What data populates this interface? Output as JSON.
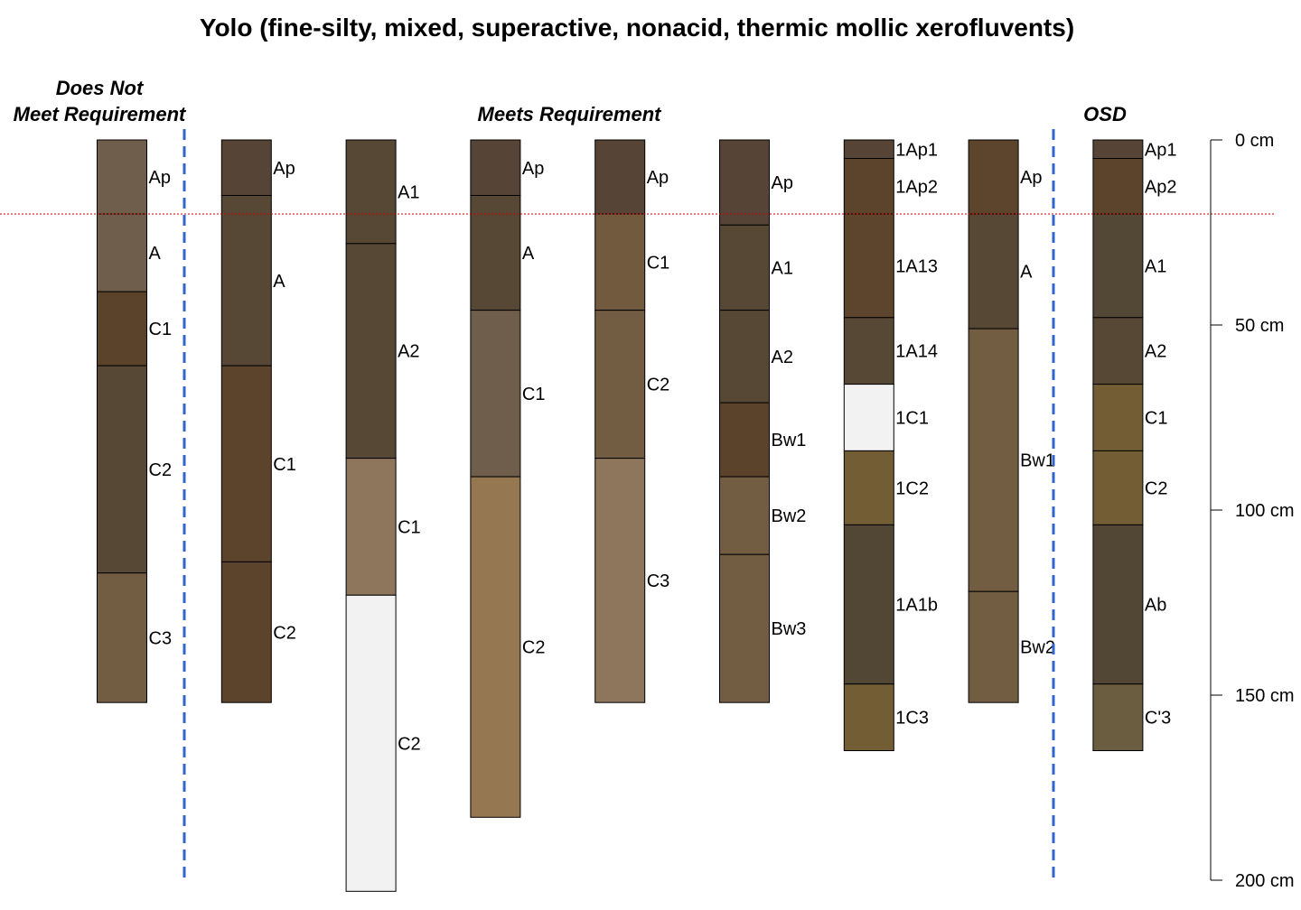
{
  "title": "Yolo (fine-silty, mixed, superactive, nonacid, thermic mollic xerofluvents)",
  "groups": [
    {
      "lines": [
        "Does Not",
        "Meet Requirement"
      ]
    },
    {
      "lines": [
        "Meets Requirement"
      ]
    },
    {
      "lines": [
        "OSD"
      ]
    }
  ],
  "depth_axis": {
    "unit": "cm",
    "max": 200,
    "ticks": [
      {
        "value": 0,
        "label": "0 cm"
      },
      {
        "value": 50,
        "label": "50 cm"
      },
      {
        "value": 100,
        "label": "100 cm"
      },
      {
        "value": 150,
        "label": "150 cm"
      },
      {
        "value": 200,
        "label": "200 cm"
      }
    ]
  },
  "reference_depth_cm": 20,
  "reference_line_color": "#cc0000",
  "separator_color": "#3366cc",
  "profiles": [
    {
      "horizons": [
        {
          "name": "Ap",
          "top": 0,
          "bottom": 20,
          "color": "#6f5e4b"
        },
        {
          "name": "A",
          "top": 20,
          "bottom": 41,
          "color": "#6f5e4b"
        },
        {
          "name": "C1",
          "top": 41,
          "bottom": 61,
          "color": "#5b432b"
        },
        {
          "name": "C2",
          "top": 61,
          "bottom": 117,
          "color": "#574735"
        },
        {
          "name": "C3",
          "top": 117,
          "bottom": 152,
          "color": "#725c42"
        }
      ]
    },
    {
      "horizons": [
        {
          "name": "Ap",
          "top": 0,
          "bottom": 15,
          "color": "#564536"
        },
        {
          "name": "A",
          "top": 15,
          "bottom": 61,
          "color": "#574735"
        },
        {
          "name": "C1",
          "top": 61,
          "bottom": 114,
          "color": "#5c432b"
        },
        {
          "name": "C2",
          "top": 114,
          "bottom": 152,
          "color": "#5b432c"
        }
      ]
    },
    {
      "horizons": [
        {
          "name": "A1",
          "top": 0,
          "bottom": 28,
          "color": "#574735"
        },
        {
          "name": "A2",
          "top": 28,
          "bottom": 86,
          "color": "#574735"
        },
        {
          "name": "C1",
          "top": 86,
          "bottom": 123,
          "color": "#8d765c"
        },
        {
          "name": "C2",
          "top": 123,
          "bottom": 203,
          "color": "#f2f2f2"
        }
      ]
    },
    {
      "horizons": [
        {
          "name": "Ap",
          "top": 0,
          "bottom": 15,
          "color": "#564536"
        },
        {
          "name": "A",
          "top": 15,
          "bottom": 46,
          "color": "#574735"
        },
        {
          "name": "C1",
          "top": 46,
          "bottom": 91,
          "color": "#6f5e4b"
        },
        {
          "name": "C2",
          "top": 91,
          "bottom": 183,
          "color": "#957852"
        }
      ]
    },
    {
      "horizons": [
        {
          "name": "Ap",
          "top": 0,
          "bottom": 20,
          "color": "#564536"
        },
        {
          "name": "C1",
          "top": 20,
          "bottom": 46,
          "color": "#725a3f"
        },
        {
          "name": "C2",
          "top": 46,
          "bottom": 86,
          "color": "#725c42"
        },
        {
          "name": "C3",
          "top": 86,
          "bottom": 152,
          "color": "#8d765c"
        }
      ]
    },
    {
      "horizons": [
        {
          "name": "Ap",
          "top": 0,
          "bottom": 23,
          "color": "#564536"
        },
        {
          "name": "A1",
          "top": 23,
          "bottom": 46,
          "color": "#574735"
        },
        {
          "name": "A2",
          "top": 46,
          "bottom": 71,
          "color": "#574735"
        },
        {
          "name": "Bw1",
          "top": 71,
          "bottom": 91,
          "color": "#5b432b"
        },
        {
          "name": "Bw2",
          "top": 91,
          "bottom": 112,
          "color": "#725c42"
        },
        {
          "name": "Bw3",
          "top": 112,
          "bottom": 152,
          "color": "#725c42"
        }
      ]
    },
    {
      "horizons": [
        {
          "name": "1Ap1",
          "top": 0,
          "bottom": 5,
          "color": "#564536"
        },
        {
          "name": "1Ap2",
          "top": 5,
          "bottom": 20,
          "color": "#5c432b"
        },
        {
          "name": "1A13",
          "top": 20,
          "bottom": 48,
          "color": "#5c452c"
        },
        {
          "name": "1A14",
          "top": 48,
          "bottom": 66,
          "color": "#574735"
        },
        {
          "name": "1C1",
          "top": 66,
          "bottom": 84,
          "color": "#f2f2f2"
        },
        {
          "name": "1C2",
          "top": 84,
          "bottom": 104,
          "color": "#735d35"
        },
        {
          "name": "1A1b",
          "top": 104,
          "bottom": 147,
          "color": "#524735"
        },
        {
          "name": "1C3",
          "top": 147,
          "bottom": 165,
          "color": "#735d35"
        }
      ]
    },
    {
      "horizons": [
        {
          "name": "Ap",
          "top": 0,
          "bottom": 20,
          "color": "#5c452c"
        },
        {
          "name": "A",
          "top": 20,
          "bottom": 51,
          "color": "#574735"
        },
        {
          "name": "Bw1",
          "top": 51,
          "bottom": 122,
          "color": "#725c42"
        },
        {
          "name": "Bw2",
          "top": 122,
          "bottom": 152,
          "color": "#725c42"
        }
      ]
    },
    {
      "horizons": [
        {
          "name": "Ap1",
          "top": 0,
          "bottom": 5,
          "color": "#564536"
        },
        {
          "name": "Ap2",
          "top": 5,
          "bottom": 20,
          "color": "#5c432b"
        },
        {
          "name": "A1",
          "top": 20,
          "bottom": 48,
          "color": "#524835"
        },
        {
          "name": "A2",
          "top": 48,
          "bottom": 66,
          "color": "#574735"
        },
        {
          "name": "C1",
          "top": 66,
          "bottom": 84,
          "color": "#735d35"
        },
        {
          "name": "C2",
          "top": 84,
          "bottom": 104,
          "color": "#735d35"
        },
        {
          "name": "Ab",
          "top": 104,
          "bottom": 147,
          "color": "#524735"
        },
        {
          "name": "C'3",
          "top": 147,
          "bottom": 165,
          "color": "#6b5d40"
        }
      ]
    }
  ]
}
